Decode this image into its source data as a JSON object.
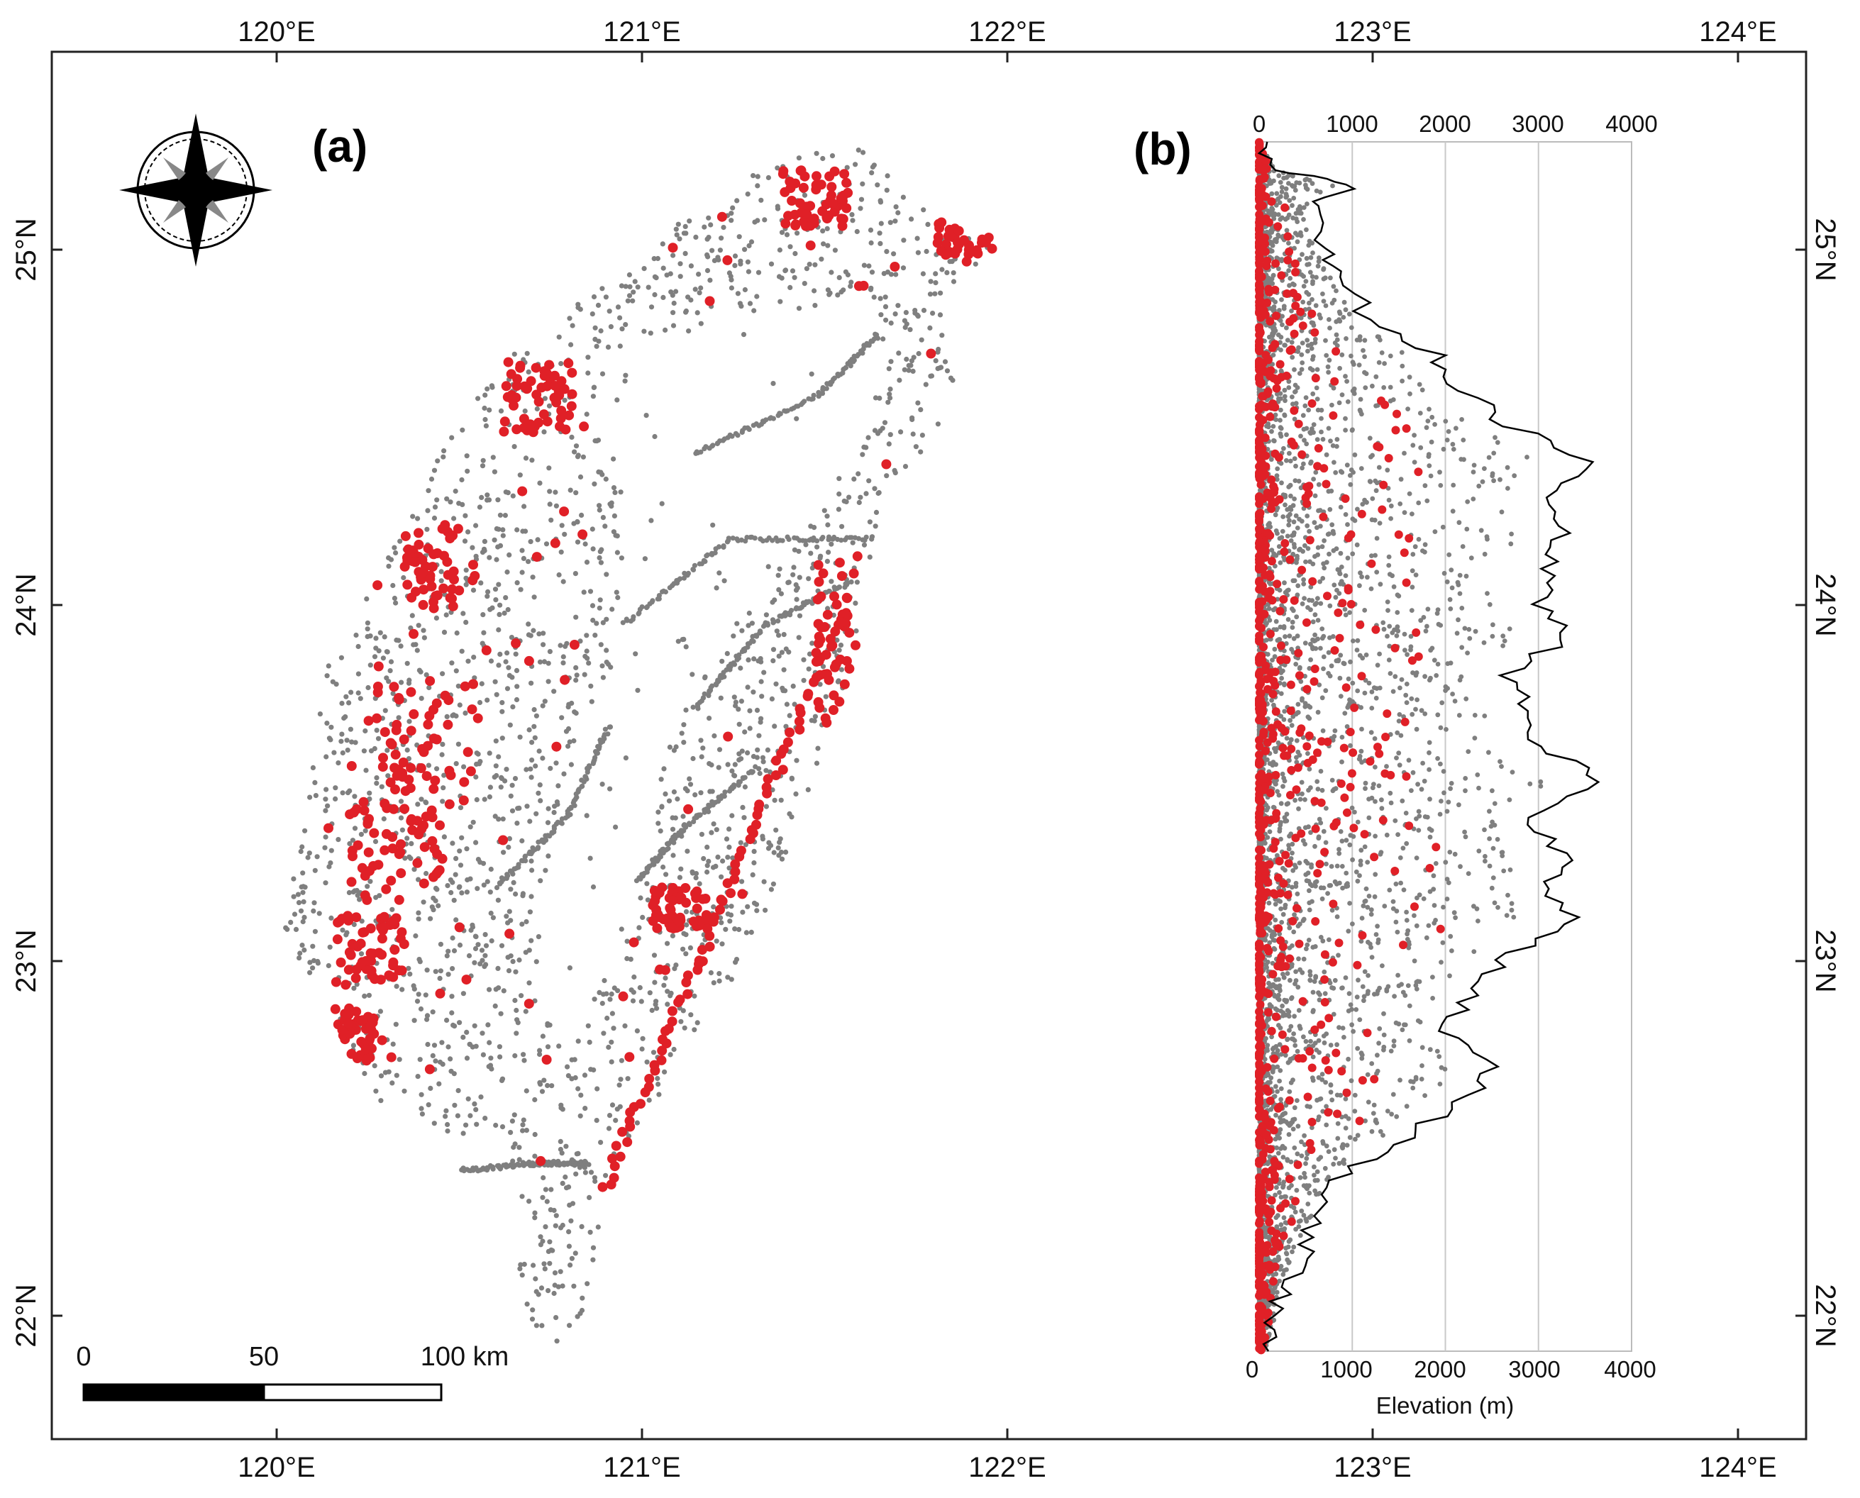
{
  "figure": {
    "panel_a_label": "(a)",
    "panel_b_label": "(b)",
    "lon_ticks": [
      "120°E",
      "121°E",
      "122°E",
      "123°E",
      "124°E"
    ],
    "lat_ticks": [
      "25°N",
      "24°N",
      "23°N",
      "22°N"
    ],
    "lon_range": [
      119.4,
      124.2
    ],
    "lat_range": [
      21.65,
      25.7
    ]
  },
  "map": {
    "scale_bar": {
      "labels": [
        "0",
        "50",
        "100 km"
      ]
    },
    "north_arrow": "compass-star-icon",
    "colors": {
      "all_points": "#7f7f7f",
      "highlighted_points": "#e02027"
    }
  },
  "chart_data": {
    "type": "scatter",
    "xlabel": "Elevation (m)",
    "x_ticks": [
      "0",
      "1000",
      "2000",
      "3000",
      "4000"
    ],
    "xlim": [
      0,
      4000
    ],
    "ylim": [
      21.9,
      25.3
    ],
    "y_axis": "latitude (shared with map, °N)",
    "grid": "vertical",
    "profile_line": [
      [
        25.3,
        0
      ],
      [
        25.22,
        200
      ],
      [
        25.18,
        1000
      ],
      [
        25.12,
        600
      ],
      [
        25.0,
        700
      ],
      [
        24.92,
        900
      ],
      [
        24.8,
        1200
      ],
      [
        24.7,
        1900
      ],
      [
        24.6,
        2200
      ],
      [
        24.5,
        2700
      ],
      [
        24.4,
        3600
      ],
      [
        24.3,
        3000
      ],
      [
        24.2,
        3300
      ],
      [
        24.1,
        3100
      ],
      [
        24.0,
        3000
      ],
      [
        23.9,
        3300
      ],
      [
        23.8,
        2600
      ],
      [
        23.7,
        2900
      ],
      [
        23.6,
        3000
      ],
      [
        23.5,
        3700
      ],
      [
        23.4,
        2900
      ],
      [
        23.3,
        3300
      ],
      [
        23.2,
        3100
      ],
      [
        23.1,
        3400
      ],
      [
        23.0,
        2600
      ],
      [
        22.9,
        2300
      ],
      [
        22.8,
        2000
      ],
      [
        22.7,
        2600
      ],
      [
        22.6,
        2100
      ],
      [
        22.5,
        1600
      ],
      [
        22.4,
        900
      ],
      [
        22.3,
        700
      ],
      [
        22.2,
        500
      ],
      [
        22.1,
        300
      ],
      [
        22.0,
        200
      ],
      [
        21.9,
        100
      ]
    ]
  }
}
